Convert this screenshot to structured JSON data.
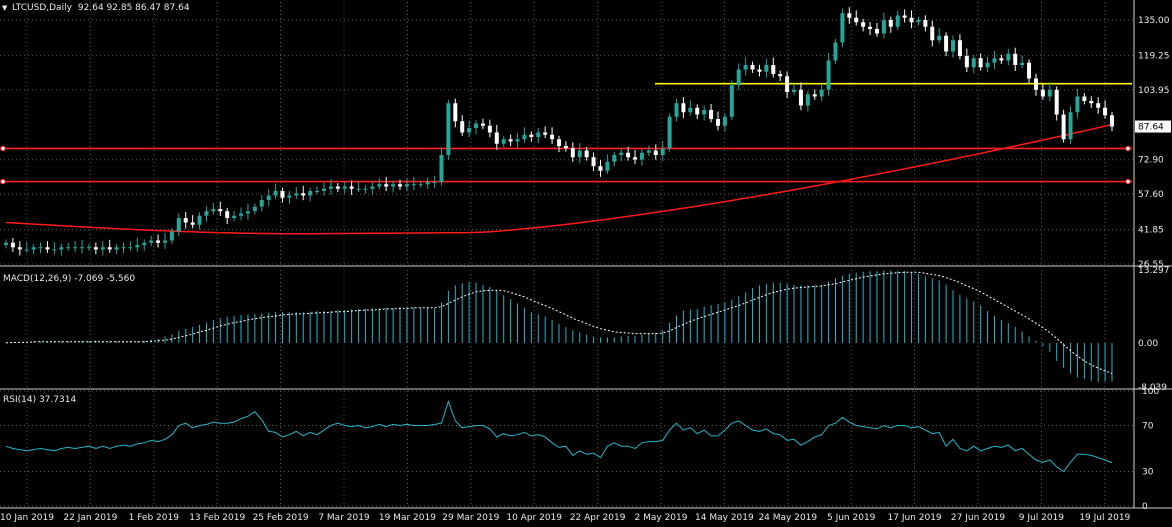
{
  "header": {
    "symbol": "LTCUSD,Daily",
    "ohlc": "92.64 92.85 86.47 87.64",
    "macd_label": "MACD(12,26,9) -7.069 -5.560",
    "rsi_label": "RSI(14) 37.7314"
  },
  "colors": {
    "background": "#000000",
    "grid": "#5a5a5a",
    "bull": "#26a69a",
    "bear": "#ffffff",
    "ma": "#ff1a1a",
    "resistance": "#ffff00",
    "support": "#ff2020",
    "macd_hist": "#26b5c7",
    "macd_signal": "#ffffff",
    "rsi": "#26b5c7"
  },
  "chart_data": [
    {
      "type": "candlestick",
      "panel": "price",
      "y_ticks": [
        "135.00",
        "119.25",
        "103.95",
        "72.90",
        "57.60",
        "41.85",
        "26.55"
      ],
      "ylim": [
        26.55,
        143
      ],
      "current_price": "87.64",
      "x_ticks": [
        "10 Jan 2019",
        "22 Jan 2019",
        "1 Feb 2019",
        "13 Feb 2019",
        "25 Feb 2019",
        "7 Mar 2019",
        "19 Mar 2019",
        "29 Mar 2019",
        "10 Apr 2019",
        "22 Apr 2019",
        "2 May 2019",
        "14 May 2019",
        "24 May 2019",
        "5 Jun 2019",
        "17 Jun 2019",
        "27 Jun 2019",
        "9 Jul 2019",
        "19 Jul 2019"
      ],
      "closes": [
        36,
        34,
        33,
        33,
        34,
        34,
        33,
        33,
        34,
        34,
        34,
        34,
        34,
        33,
        34,
        33,
        34,
        34,
        34,
        35,
        36,
        37,
        36,
        37,
        41,
        47,
        45,
        44,
        48,
        50,
        51,
        50,
        47,
        48,
        49,
        50,
        52,
        55,
        57,
        59,
        56,
        57,
        58,
        57,
        59,
        59,
        60,
        61,
        60,
        61,
        60,
        60,
        60,
        61,
        62,
        61,
        62,
        61,
        62,
        62,
        62,
        63,
        63,
        75,
        98,
        90,
        85,
        87,
        89,
        88,
        85,
        80,
        82,
        81,
        82,
        84,
        83,
        85,
        84,
        82,
        79,
        78,
        74,
        77,
        74,
        70,
        68,
        72,
        75,
        76,
        74,
        73,
        76,
        77,
        75,
        78,
        92,
        98,
        94,
        96,
        93,
        95,
        91,
        88,
        92,
        106,
        113,
        115,
        113,
        112,
        115,
        111,
        110,
        103,
        104,
        97,
        102,
        101,
        104,
        117,
        125,
        138,
        136,
        134,
        132,
        131,
        129,
        135,
        132,
        137,
        136,
        134,
        135,
        132,
        126,
        128,
        121,
        126,
        119,
        114,
        118,
        114,
        116,
        118,
        117,
        120,
        115,
        116,
        109,
        104,
        101,
        104,
        93,
        82,
        94,
        101,
        99,
        98,
        96,
        92.64,
        87.64
      ],
      "moving_average": {
        "period": 200,
        "from": 45,
        "to": 88.5
      },
      "horizontal_lines": [
        {
          "name": "resistance",
          "value": 106.7
        },
        {
          "name": "support-upper",
          "value": 77.9
        },
        {
          "name": "support-lower",
          "value": 63.2
        }
      ]
    },
    {
      "type": "bar",
      "panel": "macd",
      "name": "MACD(12,26,9)",
      "y_ticks": [
        "13.297",
        "0.00",
        "-8.039"
      ],
      "ylim": [
        -8.039,
        13.297
      ],
      "histogram": [
        0.1,
        0.1,
        0.1,
        0.2,
        0.2,
        0.2,
        0.2,
        0.3,
        0.3,
        0.3,
        0.3,
        0.4,
        0.4,
        0.4,
        0.3,
        0.3,
        0.3,
        0.3,
        0.3,
        0.3,
        0.4,
        0.6,
        0.8,
        1.2,
        1.6,
        2.2,
        2.6,
        2.9,
        3.3,
        3.7,
        4.2,
        4.5,
        4.8,
        4.9,
        5.1,
        5.2,
        5.3,
        5.4,
        5.5,
        5.6,
        5.6,
        5.6,
        5.6,
        5.6,
        5.7,
        5.8,
        5.8,
        5.8,
        6.0,
        6.0,
        6.1,
        6.2,
        6.2,
        6.3,
        6.3,
        6.4,
        6.4,
        6.5,
        6.5,
        6.5,
        6.4,
        6.4,
        6.3,
        7.4,
        9.5,
        10.5,
        10.9,
        11.1,
        11.0,
        10.6,
        10.2,
        9.5,
        8.7,
        8.0,
        7.2,
        6.4,
        5.6,
        5.2,
        4.8,
        4.2,
        3.5,
        2.9,
        2.3,
        1.9,
        1.5,
        1.2,
        1.0,
        1.0,
        1.0,
        1.2,
        1.3,
        1.3,
        1.5,
        1.7,
        1.9,
        2.3,
        3.7,
        5.0,
        5.9,
        6.1,
        6.2,
        6.6,
        6.9,
        7.1,
        7.4,
        7.9,
        8.5,
        9.2,
        10.0,
        10.5,
        10.8,
        11.0,
        11.0,
        10.8,
        10.6,
        10.5,
        10.5,
        10.5,
        10.6,
        11.2,
        11.8,
        12.3,
        12.6,
        12.8,
        13.0,
        13.1,
        13.1,
        13.2,
        13.2,
        13.2,
        13.1,
        12.9,
        12.6,
        12.1,
        11.8,
        11.4,
        10.6,
        9.6,
        8.8,
        8.1,
        7.6,
        6.8,
        5.8,
        4.9,
        4.2,
        3.6,
        2.9,
        2.1,
        1.2,
        0.4,
        -0.6,
        -1.6,
        -3.3,
        -4.6,
        -5.6,
        -6.3,
        -6.6,
        -6.9,
        -7.1,
        -7.0,
        -7.069
      ],
      "signal": [
        0.0,
        0.1,
        0.1,
        0.1,
        0.2,
        0.2,
        0.2,
        0.2,
        0.2,
        0.2,
        0.2,
        0.2,
        0.2,
        0.2,
        0.2,
        0.2,
        0.2,
        0.2,
        0.2,
        0.2,
        0.2,
        0.3,
        0.4,
        0.5,
        0.7,
        1.0,
        1.3,
        1.6,
        2.0,
        2.3,
        2.7,
        3.1,
        3.4,
        3.7,
        3.9,
        4.2,
        4.4,
        4.6,
        4.8,
        4.9,
        5.1,
        5.2,
        5.3,
        5.3,
        5.4,
        5.5,
        5.5,
        5.6,
        5.7,
        5.7,
        5.8,
        5.9,
        6.0,
        6.0,
        6.1,
        6.2,
        6.2,
        6.3,
        6.3,
        6.4,
        6.4,
        6.4,
        6.4,
        6.6,
        7.2,
        7.8,
        8.4,
        8.9,
        9.3,
        9.5,
        9.6,
        9.6,
        9.5,
        9.2,
        8.8,
        8.4,
        7.8,
        7.3,
        6.8,
        6.3,
        5.7,
        5.1,
        4.5,
        4.0,
        3.5,
        3.0,
        2.6,
        2.3,
        2.0,
        1.9,
        1.8,
        1.7,
        1.7,
        1.7,
        1.7,
        1.8,
        2.2,
        2.8,
        3.4,
        3.9,
        4.4,
        4.8,
        5.2,
        5.6,
        6.0,
        6.4,
        6.8,
        7.3,
        7.8,
        8.3,
        8.8,
        9.2,
        9.5,
        9.8,
        10.0,
        10.1,
        10.2,
        10.3,
        10.4,
        10.6,
        10.8,
        11.1,
        11.4,
        11.7,
        12.0,
        12.2,
        12.4,
        12.6,
        12.7,
        12.8,
        12.9,
        12.9,
        12.9,
        12.7,
        12.5,
        12.3,
        11.9,
        11.5,
        11.0,
        10.4,
        9.9,
        9.3,
        8.6,
        7.9,
        7.2,
        6.5,
        5.8,
        5.1,
        4.4,
        3.6,
        2.8,
        1.9,
        0.8,
        -0.3,
        -1.4,
        -2.4,
        -3.3,
        -4.0,
        -4.6,
        -5.1,
        -5.56
      ]
    },
    {
      "type": "line",
      "panel": "rsi",
      "name": "RSI(14)",
      "y_ticks": [
        "100",
        "70",
        "30",
        "0"
      ],
      "ylim": [
        0,
        100
      ],
      "values": [
        52,
        50,
        49,
        48,
        49,
        50,
        49,
        48,
        50,
        51,
        50,
        51,
        52,
        50,
        52,
        50,
        52,
        53,
        52,
        54,
        55,
        57,
        56,
        58,
        62,
        70,
        72,
        68,
        70,
        71,
        73,
        72,
        72,
        73,
        76,
        78,
        82,
        75,
        65,
        64,
        60,
        62,
        65,
        61,
        64,
        62,
        66,
        70,
        72,
        70,
        69,
        70,
        68,
        69,
        71,
        69,
        71,
        70,
        71,
        70,
        70,
        70,
        71,
        72,
        91,
        74,
        68,
        69,
        70,
        70,
        67,
        60,
        63,
        61,
        62,
        64,
        61,
        62,
        60,
        55,
        51,
        52,
        44,
        48,
        45,
        46,
        42,
        52,
        55,
        52,
        52,
        50,
        55,
        56,
        56,
        57,
        66,
        72,
        66,
        68,
        63,
        66,
        61,
        61,
        66,
        72,
        74,
        70,
        66,
        65,
        67,
        63,
        62,
        57,
        58,
        53,
        56,
        60,
        62,
        70,
        72,
        77,
        73,
        70,
        69,
        68,
        67,
        70,
        68,
        70,
        70,
        68,
        69,
        66,
        63,
        64,
        52,
        58,
        50,
        48,
        52,
        48,
        50,
        52,
        51,
        53,
        48,
        50,
        45,
        40,
        38,
        40,
        34,
        30,
        38,
        45,
        45,
        44,
        42,
        40,
        37.7314
      ]
    }
  ]
}
